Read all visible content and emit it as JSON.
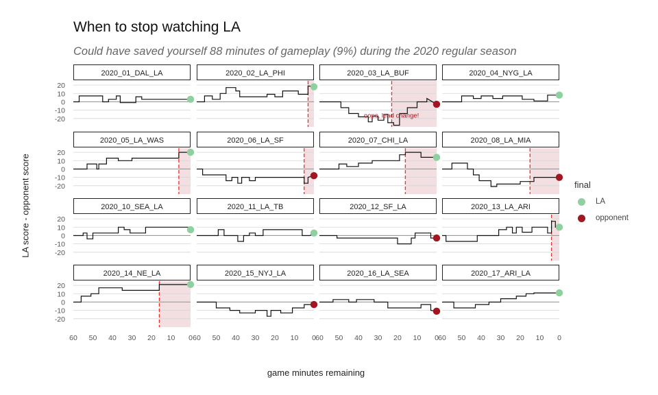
{
  "title": "When to stop watching LA",
  "subtitle": "Could have saved yourself 88 minutes of gameplay (9%) during the 2020 regular season",
  "colors": {
    "la": "#8fd19e",
    "opponent": "#a31621",
    "cutoff": "#e8302d",
    "shade": "#f3dfe2"
  },
  "chart_data": {
    "type": "line",
    "xlabel": "game minutes remaining",
    "ylabel": "LA score - opponent score",
    "xlim": [
      60,
      0
    ],
    "xticks": [
      60,
      50,
      40,
      30,
      20,
      10,
      0
    ],
    "ylim": [
      -30,
      25
    ],
    "yticks": [
      20,
      10,
      0,
      -10,
      -20
    ],
    "legend": {
      "title": "final",
      "entries": [
        {
          "label": "LA",
          "color": "#8fd19e"
        },
        {
          "label": "opponent",
          "color": "#a31621"
        }
      ]
    },
    "annotation": {
      "panel": "2020_03_LA_BUF",
      "text": "oops, lead change!"
    },
    "panels": [
      {
        "title": "2020_01_DAL_LA",
        "final": "LA",
        "cutoff": null,
        "points": [
          [
            60,
            0
          ],
          [
            57,
            0
          ],
          [
            57,
            7
          ],
          [
            45,
            7
          ],
          [
            45,
            0
          ],
          [
            42,
            0
          ],
          [
            42,
            3
          ],
          [
            38,
            3
          ],
          [
            38,
            7
          ],
          [
            36,
            7
          ],
          [
            36,
            -1
          ],
          [
            28,
            -1
          ],
          [
            28,
            6
          ],
          [
            25,
            6
          ],
          [
            25,
            3
          ],
          [
            0,
            3
          ]
        ]
      },
      {
        "title": "2020_02_LA_PHI",
        "final": "LA",
        "cutoff": 3,
        "points": [
          [
            60,
            0
          ],
          [
            56,
            0
          ],
          [
            56,
            7
          ],
          [
            52,
            7
          ],
          [
            52,
            3
          ],
          [
            48,
            3
          ],
          [
            48,
            10
          ],
          [
            45,
            10
          ],
          [
            45,
            17
          ],
          [
            40,
            17
          ],
          [
            40,
            13
          ],
          [
            38,
            13
          ],
          [
            38,
            6
          ],
          [
            24,
            6
          ],
          [
            24,
            9
          ],
          [
            20,
            9
          ],
          [
            20,
            6
          ],
          [
            16,
            6
          ],
          [
            16,
            13
          ],
          [
            8,
            13
          ],
          [
            8,
            9
          ],
          [
            3,
            9
          ],
          [
            3,
            19
          ],
          [
            0,
            18
          ]
        ]
      },
      {
        "title": "2020_03_LA_BUF",
        "final": "opponent",
        "cutoff": 23,
        "points": [
          [
            60,
            0
          ],
          [
            49,
            0
          ],
          [
            49,
            -7
          ],
          [
            45,
            -7
          ],
          [
            45,
            -14
          ],
          [
            40,
            -14
          ],
          [
            40,
            -18
          ],
          [
            35,
            -18
          ],
          [
            35,
            -24
          ],
          [
            33,
            -24
          ],
          [
            33,
            -17
          ],
          [
            30,
            -17
          ],
          [
            30,
            -22
          ],
          [
            27,
            -22
          ],
          [
            27,
            -15
          ],
          [
            25,
            -15
          ],
          [
            25,
            -25
          ],
          [
            22,
            -25
          ],
          [
            22,
            -28
          ],
          [
            19,
            -28
          ],
          [
            19,
            -14
          ],
          [
            15,
            -14
          ],
          [
            15,
            -7
          ],
          [
            10,
            -7
          ],
          [
            10,
            0
          ],
          [
            5,
            0
          ],
          [
            5,
            4
          ],
          [
            0,
            -3
          ]
        ]
      },
      {
        "title": "2020_04_NYG_LA",
        "final": "LA",
        "cutoff": null,
        "points": [
          [
            60,
            0
          ],
          [
            50,
            0
          ],
          [
            50,
            7
          ],
          [
            44,
            7
          ],
          [
            44,
            4
          ],
          [
            40,
            4
          ],
          [
            40,
            7
          ],
          [
            34,
            7
          ],
          [
            34,
            4
          ],
          [
            29,
            4
          ],
          [
            29,
            7
          ],
          [
            19,
            7
          ],
          [
            19,
            3
          ],
          [
            13,
            3
          ],
          [
            13,
            1
          ],
          [
            6,
            1
          ],
          [
            6,
            8
          ],
          [
            0,
            8
          ]
        ]
      },
      {
        "title": "2020_05_LA_WAS",
        "final": "LA",
        "cutoff": 6,
        "points": [
          [
            60,
            0
          ],
          [
            53,
            0
          ],
          [
            53,
            6
          ],
          [
            48,
            6
          ],
          [
            48,
            0
          ],
          [
            47,
            0
          ],
          [
            47,
            6
          ],
          [
            43,
            6
          ],
          [
            43,
            13
          ],
          [
            37,
            13
          ],
          [
            37,
            10
          ],
          [
            30,
            10
          ],
          [
            30,
            13
          ],
          [
            6,
            13
          ],
          [
            6,
            20
          ],
          [
            0,
            20
          ]
        ]
      },
      {
        "title": "2020_06_LA_SF",
        "final": "opponent",
        "cutoff": 5,
        "points": [
          [
            60,
            0
          ],
          [
            57,
            0
          ],
          [
            57,
            -7
          ],
          [
            45,
            -7
          ],
          [
            45,
            -14
          ],
          [
            42,
            -14
          ],
          [
            42,
            -10
          ],
          [
            39,
            -10
          ],
          [
            39,
            -17
          ],
          [
            37,
            -17
          ],
          [
            37,
            -10
          ],
          [
            33,
            -10
          ],
          [
            33,
            -14
          ],
          [
            30,
            -14
          ],
          [
            30,
            -10
          ],
          [
            5,
            -10
          ],
          [
            5,
            -17
          ],
          [
            3,
            -17
          ],
          [
            3,
            -10
          ],
          [
            0,
            -8
          ]
        ]
      },
      {
        "title": "2020_07_CHI_LA",
        "final": "LA",
        "cutoff": 16,
        "points": [
          [
            60,
            0
          ],
          [
            50,
            0
          ],
          [
            50,
            6
          ],
          [
            46,
            6
          ],
          [
            46,
            3
          ],
          [
            40,
            3
          ],
          [
            40,
            7
          ],
          [
            33,
            7
          ],
          [
            33,
            10
          ],
          [
            19,
            10
          ],
          [
            19,
            17
          ],
          [
            16,
            17
          ],
          [
            16,
            20
          ],
          [
            8,
            20
          ],
          [
            8,
            14
          ],
          [
            0,
            14
          ]
        ]
      },
      {
        "title": "2020_08_LA_MIA",
        "final": "opponent",
        "cutoff": 15,
        "points": [
          [
            60,
            0
          ],
          [
            55,
            0
          ],
          [
            55,
            7
          ],
          [
            47,
            7
          ],
          [
            47,
            0
          ],
          [
            44,
            0
          ],
          [
            44,
            -7
          ],
          [
            41,
            -7
          ],
          [
            41,
            -14
          ],
          [
            35,
            -14
          ],
          [
            35,
            -21
          ],
          [
            32,
            -21
          ],
          [
            32,
            -18
          ],
          [
            20,
            -18
          ],
          [
            20,
            -15
          ],
          [
            13,
            -15
          ],
          [
            13,
            -10
          ],
          [
            0,
            -10
          ]
        ]
      },
      {
        "title": "2020_10_SEA_LA",
        "final": "LA",
        "cutoff": null,
        "points": [
          [
            60,
            0
          ],
          [
            55,
            0
          ],
          [
            55,
            3
          ],
          [
            53,
            3
          ],
          [
            53,
            -4
          ],
          [
            50,
            -4
          ],
          [
            50,
            3
          ],
          [
            37,
            3
          ],
          [
            37,
            10
          ],
          [
            34,
            10
          ],
          [
            34,
            7
          ],
          [
            31,
            7
          ],
          [
            31,
            3
          ],
          [
            23,
            3
          ],
          [
            23,
            10
          ],
          [
            0,
            10
          ],
          [
            0,
            7
          ]
        ]
      },
      {
        "title": "2020_11_LA_TB",
        "final": "LA",
        "cutoff": null,
        "points": [
          [
            60,
            0
          ],
          [
            49,
            0
          ],
          [
            49,
            7
          ],
          [
            46,
            7
          ],
          [
            46,
            0
          ],
          [
            39,
            0
          ],
          [
            39,
            -7
          ],
          [
            36,
            -7
          ],
          [
            36,
            0
          ],
          [
            33,
            0
          ],
          [
            33,
            3
          ],
          [
            30,
            3
          ],
          [
            30,
            0
          ],
          [
            26,
            0
          ],
          [
            26,
            7
          ],
          [
            6,
            7
          ],
          [
            6,
            0
          ],
          [
            2,
            0
          ],
          [
            0,
            3
          ]
        ]
      },
      {
        "title": "2020_12_SF_LA",
        "final": "opponent",
        "cutoff": null,
        "points": [
          [
            60,
            0
          ],
          [
            51,
            0
          ],
          [
            51,
            -3
          ],
          [
            20,
            -3
          ],
          [
            20,
            -10
          ],
          [
            13,
            -10
          ],
          [
            13,
            -3
          ],
          [
            11,
            -3
          ],
          [
            11,
            3
          ],
          [
            3,
            3
          ],
          [
            3,
            -3
          ],
          [
            0,
            -3
          ]
        ]
      },
      {
        "title": "2020_13_LA_ARI",
        "final": "LA",
        "cutoff": 4,
        "points": [
          [
            60,
            0
          ],
          [
            58,
            0
          ],
          [
            58,
            -7
          ],
          [
            42,
            -7
          ],
          [
            42,
            0
          ],
          [
            31,
            0
          ],
          [
            31,
            7
          ],
          [
            27,
            7
          ],
          [
            27,
            10
          ],
          [
            24,
            10
          ],
          [
            24,
            3
          ],
          [
            22,
            3
          ],
          [
            22,
            10
          ],
          [
            19,
            10
          ],
          [
            19,
            4
          ],
          [
            14,
            4
          ],
          [
            14,
            10
          ],
          [
            6,
            10
          ],
          [
            6,
            3
          ],
          [
            4,
            3
          ],
          [
            4,
            17
          ],
          [
            2,
            17
          ],
          [
            2,
            10
          ],
          [
            0,
            10
          ]
        ]
      },
      {
        "title": "2020_14_NE_LA",
        "final": "LA",
        "cutoff": 16,
        "points": [
          [
            60,
            0
          ],
          [
            56,
            0
          ],
          [
            56,
            7
          ],
          [
            51,
            7
          ],
          [
            51,
            10
          ],
          [
            47,
            10
          ],
          [
            47,
            17
          ],
          [
            35,
            17
          ],
          [
            35,
            14
          ],
          [
            16,
            14
          ],
          [
            16,
            21
          ],
          [
            0,
            21
          ]
        ]
      },
      {
        "title": "2020_15_NYJ_LA",
        "final": "opponent",
        "cutoff": null,
        "points": [
          [
            60,
            0
          ],
          [
            50,
            0
          ],
          [
            50,
            -7
          ],
          [
            43,
            -7
          ],
          [
            43,
            -10
          ],
          [
            38,
            -10
          ],
          [
            38,
            -13
          ],
          [
            30,
            -13
          ],
          [
            30,
            -10
          ],
          [
            24,
            -10
          ],
          [
            24,
            -17
          ],
          [
            22,
            -17
          ],
          [
            22,
            -10
          ],
          [
            17,
            -10
          ],
          [
            17,
            -13
          ],
          [
            11,
            -13
          ],
          [
            11,
            -7
          ],
          [
            5,
            -7
          ],
          [
            5,
            -3
          ],
          [
            0,
            -3
          ]
        ]
      },
      {
        "title": "2020_16_LA_SEA",
        "final": "opponent",
        "cutoff": null,
        "points": [
          [
            60,
            0
          ],
          [
            53,
            0
          ],
          [
            53,
            3
          ],
          [
            45,
            3
          ],
          [
            45,
            0
          ],
          [
            41,
            0
          ],
          [
            41,
            3
          ],
          [
            32,
            3
          ],
          [
            32,
            0
          ],
          [
            25,
            0
          ],
          [
            25,
            -7
          ],
          [
            8,
            -7
          ],
          [
            8,
            -3
          ],
          [
            3,
            -3
          ],
          [
            3,
            -10
          ],
          [
            0,
            -11
          ]
        ]
      },
      {
        "title": "2020_17_ARI_LA",
        "final": "LA",
        "cutoff": null,
        "points": [
          [
            60,
            0
          ],
          [
            54,
            0
          ],
          [
            54,
            -7
          ],
          [
            43,
            -7
          ],
          [
            43,
            -3
          ],
          [
            36,
            -3
          ],
          [
            36,
            0
          ],
          [
            30,
            0
          ],
          [
            30,
            4
          ],
          [
            22,
            4
          ],
          [
            22,
            7
          ],
          [
            17,
            7
          ],
          [
            17,
            10
          ],
          [
            13,
            10
          ],
          [
            13,
            11
          ],
          [
            0,
            11
          ]
        ]
      }
    ]
  }
}
